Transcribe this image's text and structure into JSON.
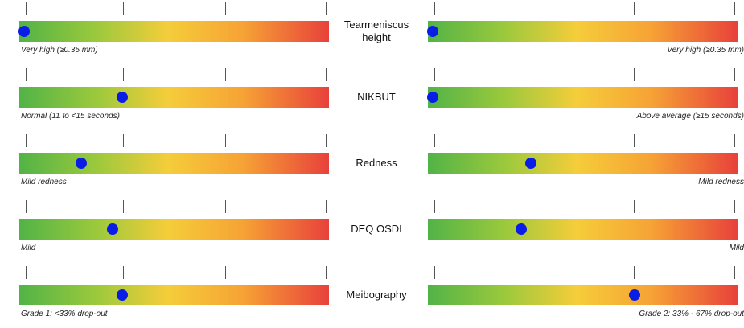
{
  "chart_data": {
    "type": "gauge-comparison",
    "scale": {
      "min": 0,
      "max": 3,
      "ticks": [
        0,
        1,
        2,
        3
      ],
      "color_scale": [
        "green",
        "yellow",
        "orange",
        "red"
      ]
    },
    "marker_color": "#0a1de6",
    "rows": [
      {
        "metric": "Tearmeniscus height",
        "left": {
          "value": 0.05,
          "caption": "Very high (≥0.35 mm)"
        },
        "right": {
          "value": 0.05,
          "caption": "Very high (≥0.35 mm)"
        }
      },
      {
        "metric": "NIKBUT",
        "left": {
          "value": 1.0,
          "caption": "Normal (11 to <15 seconds)"
        },
        "right": {
          "value": 0.05,
          "caption": "Above average (≥15 seconds)"
        }
      },
      {
        "metric": "Redness",
        "left": {
          "value": 0.6,
          "caption": "Mild redness"
        },
        "right": {
          "value": 1.0,
          "caption": "Mild redness"
        }
      },
      {
        "metric": "DEQ OSDI",
        "left": {
          "value": 0.9,
          "caption": "Mild"
        },
        "right": {
          "value": 0.9,
          "caption": "Mild"
        }
      },
      {
        "metric": "Meibography",
        "left": {
          "value": 1.0,
          "caption": "Grade 1: <33% drop-out"
        },
        "right": {
          "value": 2.0,
          "caption": "Grade 2: 33% - 67% drop-out"
        }
      }
    ]
  }
}
